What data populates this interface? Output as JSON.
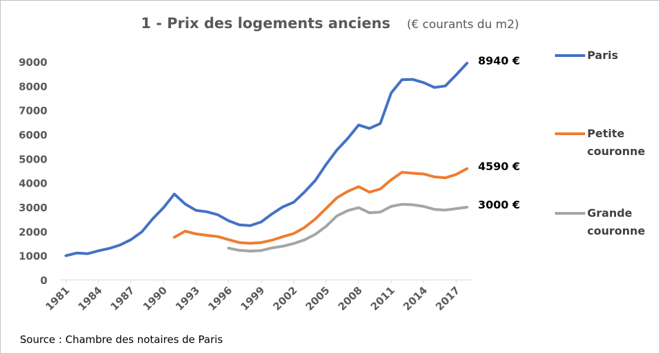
{
  "chart_data": {
    "type": "line",
    "title": "1 - Prix des logements anciens",
    "subtitle": "(€ courants du m2)",
    "xlabel": "",
    "ylabel": "",
    "ylim": [
      0,
      9000
    ],
    "xlim": [
      1981,
      2018
    ],
    "yticks": [
      0,
      1000,
      2000,
      3000,
      4000,
      5000,
      6000,
      7000,
      8000,
      9000
    ],
    "xtick_labels": [
      "1981",
      "1984",
      "1987",
      "1990",
      "1993",
      "1996",
      "1999",
      "2002",
      "2005",
      "2008",
      "2011",
      "2014",
      "2017"
    ],
    "grid": false,
    "legend_position": "right",
    "series": [
      {
        "name": "Paris",
        "legend_lines": [
          "Paris"
        ],
        "color": "#4472c4",
        "end_label": "8940 €",
        "x": [
          1981,
          1982,
          1983,
          1984,
          1985,
          1986,
          1987,
          1988,
          1989,
          1990,
          1991,
          1992,
          1993,
          1994,
          1995,
          1996,
          1997,
          1998,
          1999,
          2000,
          2001,
          2002,
          2003,
          2004,
          2005,
          2006,
          2007,
          2008,
          2009,
          2010,
          2011,
          2012,
          2013,
          2014,
          2015,
          2016,
          2017,
          2018
        ],
        "values": [
          1000,
          1110,
          1080,
          1200,
          1300,
          1440,
          1660,
          1980,
          2520,
          2980,
          3540,
          3130,
          2870,
          2810,
          2690,
          2440,
          2270,
          2240,
          2390,
          2720,
          3010,
          3200,
          3620,
          4100,
          4760,
          5360,
          5840,
          6390,
          6250,
          6450,
          7710,
          8260,
          8270,
          8140,
          7940,
          8000,
          8460,
          8940
        ]
      },
      {
        "name": "Petite couronne",
        "legend_lines": [
          "Petite",
          "couronne"
        ],
        "color": "#ed7d31",
        "end_label": "4590 €",
        "x": [
          1991,
          1992,
          1993,
          1994,
          1995,
          1996,
          1997,
          1998,
          1999,
          2000,
          2001,
          2002,
          2003,
          2004,
          2005,
          2006,
          2007,
          2008,
          2009,
          2010,
          2011,
          2012,
          2013,
          2014,
          2015,
          2016,
          2017,
          2018
        ],
        "values": [
          1760,
          2010,
          1900,
          1840,
          1790,
          1660,
          1540,
          1510,
          1540,
          1640,
          1780,
          1910,
          2160,
          2510,
          2950,
          3390,
          3650,
          3850,
          3620,
          3750,
          4130,
          4440,
          4400,
          4370,
          4250,
          4210,
          4350,
          4590
        ]
      },
      {
        "name": "Grande couronne",
        "legend_lines": [
          "Grande",
          "couronne"
        ],
        "color": "#a5a5a5",
        "end_label": "3000 €",
        "x": [
          1996,
          1997,
          1998,
          1999,
          2000,
          2001,
          2002,
          2003,
          2004,
          2005,
          2006,
          2007,
          2008,
          2009,
          2010,
          2011,
          2012,
          2013,
          2014,
          2015,
          2016,
          2017,
          2018
        ],
        "values": [
          1310,
          1220,
          1190,
          1210,
          1320,
          1390,
          1500,
          1650,
          1880,
          2210,
          2640,
          2860,
          2980,
          2770,
          2800,
          3030,
          3120,
          3100,
          3030,
          2910,
          2880,
          2940,
          3000
        ]
      }
    ]
  },
  "source": "Source : Chambre des notaires de Paris"
}
